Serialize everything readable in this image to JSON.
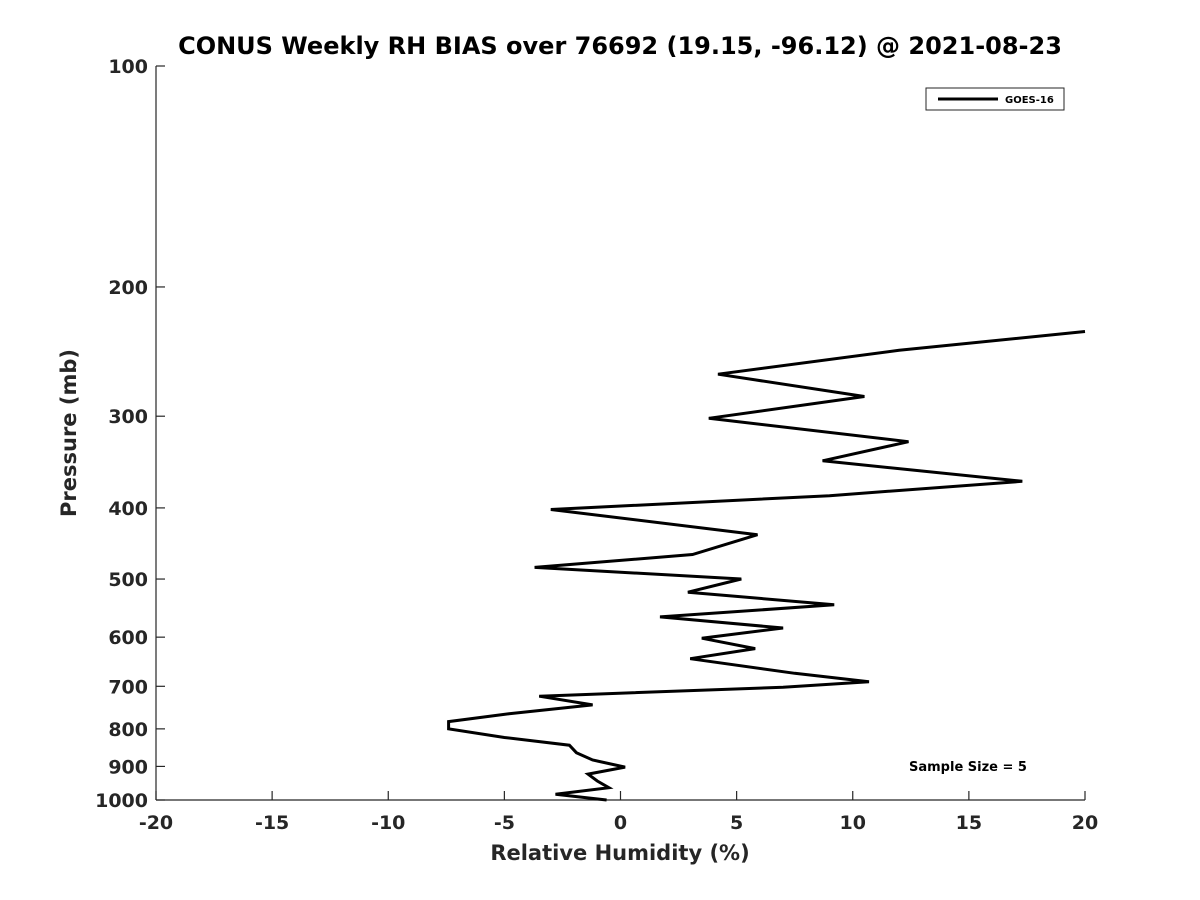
{
  "chart_data": {
    "type": "line",
    "title": "CONUS Weekly RH BIAS over 76692 (19.15, -96.12) @ 2021-08-23",
    "xlabel": "Relative Humidity (%)",
    "ylabel": "Pressure (mb)",
    "xlim": [
      -20,
      20
    ],
    "ylim": [
      100,
      1000
    ],
    "y_scale": "log",
    "y_reversed": true,
    "grid": false,
    "x_ticks": [
      "-20",
      "-15",
      "-10",
      "-5",
      "0",
      "5",
      "10",
      "15",
      "20"
    ],
    "y_ticks": [
      "100",
      "200",
      "300",
      "400",
      "500",
      "600",
      "700",
      "800",
      "900",
      "1000"
    ],
    "legend": {
      "entries": [
        "GOES-16"
      ],
      "position": "top-right"
    },
    "annotation": "Sample Size = 5",
    "series": [
      {
        "name": "GOES-16",
        "color": "#000000",
        "points": [
          {
            "x": 20.0,
            "y": 230
          },
          {
            "x": 12.0,
            "y": 244
          },
          {
            "x": 4.2,
            "y": 263
          },
          {
            "x": 10.5,
            "y": 282
          },
          {
            "x": 3.8,
            "y": 302
          },
          {
            "x": 12.4,
            "y": 325
          },
          {
            "x": 8.7,
            "y": 345
          },
          {
            "x": 17.3,
            "y": 368
          },
          {
            "x": 9.0,
            "y": 385
          },
          {
            "x": -3.0,
            "y": 402
          },
          {
            "x": 5.9,
            "y": 435
          },
          {
            "x": 3.1,
            "y": 463
          },
          {
            "x": -3.7,
            "y": 482
          },
          {
            "x": 5.2,
            "y": 500
          },
          {
            "x": 2.9,
            "y": 521
          },
          {
            "x": 9.2,
            "y": 542
          },
          {
            "x": 1.7,
            "y": 563
          },
          {
            "x": 7.0,
            "y": 583
          },
          {
            "x": 3.5,
            "y": 602
          },
          {
            "x": 5.8,
            "y": 622
          },
          {
            "x": 3.0,
            "y": 642
          },
          {
            "x": 7.5,
            "y": 672
          },
          {
            "x": 10.7,
            "y": 690
          },
          {
            "x": 7.0,
            "y": 702
          },
          {
            "x": -3.5,
            "y": 722
          },
          {
            "x": -1.2,
            "y": 742
          },
          {
            "x": -4.8,
            "y": 763
          },
          {
            "x": -7.4,
            "y": 782
          },
          {
            "x": -7.4,
            "y": 800
          },
          {
            "x": -5.0,
            "y": 822
          },
          {
            "x": -2.2,
            "y": 842
          },
          {
            "x": -1.9,
            "y": 862
          },
          {
            "x": -1.2,
            "y": 882
          },
          {
            "x": 0.2,
            "y": 902
          },
          {
            "x": -1.4,
            "y": 922
          },
          {
            "x": -1.0,
            "y": 942
          },
          {
            "x": -0.5,
            "y": 962
          },
          {
            "x": -2.8,
            "y": 982
          },
          {
            "x": -0.6,
            "y": 1000
          }
        ]
      }
    ]
  }
}
